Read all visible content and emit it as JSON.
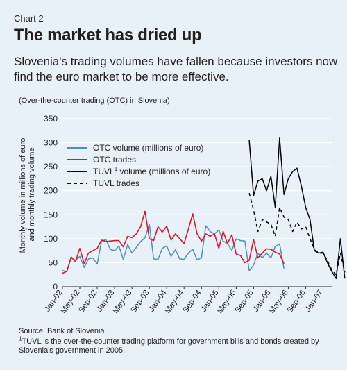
{
  "header": {
    "eyebrow": "Chart 2",
    "title": "The market has dried up",
    "subtitle": "Slovenia's trading volumes have fallen because investors now find the euro market to be more effective.",
    "context": "(Over-the-counter trading (OTC) in Slovenia)"
  },
  "footer": {
    "source": "Source: Bank of Slovenia.",
    "footnote_mark": "1",
    "footnote": "TUVL is the over-the-counter trading platform for government bills and bonds created by Slovenia's government in 2005."
  },
  "colors": {
    "background": "#e8f0f8",
    "otc_volume": "#4f8fb0",
    "otc_trades": "#d7182a",
    "tuvl": "#000000",
    "gridline": "#ffffff"
  },
  "chart_data": {
    "type": "line",
    "ylabel": "Monthly volume in millions of euro and monthly trading volume",
    "ylim": [
      0,
      350
    ],
    "yticks": [
      0,
      50,
      100,
      150,
      200,
      250,
      300,
      350
    ],
    "x_start": "2002-01",
    "x_end": "2007-03",
    "xtick_labels": [
      "Jan-02",
      "May-02",
      "Sep-02",
      "Jan-03",
      "May-03",
      "Sep-03",
      "Jan-04",
      "May-04",
      "Sep-04",
      "Jan-05",
      "May-05",
      "Sep-05",
      "Jan-06",
      "May-06",
      "Sep-06",
      "Jan-07"
    ],
    "grid": "horizontal",
    "legend_position": "upper-left",
    "series": [
      {
        "name": "OTC volume (millions of euro)",
        "key": "otc_volume",
        "style": "solid",
        "start": "2002-01",
        "values": [
          34,
          31,
          60,
          55,
          63,
          40,
          58,
          60,
          47,
          95,
          98,
          78,
          75,
          85,
          57,
          88,
          70,
          82,
          94,
          102,
          130,
          58,
          57,
          80,
          85,
          63,
          77,
          58,
          57,
          70,
          78,
          56,
          60,
          127,
          115,
          110,
          118,
          95,
          90,
          76,
          100,
          96,
          95,
          33,
          45,
          70,
          60,
          70,
          60,
          84,
          89,
          38
        ]
      },
      {
        "name": "OTC trades",
        "key": "otc_trades",
        "style": "solid",
        "start": "2002-01",
        "values": [
          28,
          32,
          62,
          52,
          80,
          48,
          70,
          75,
          80,
          97,
          94,
          95,
          96,
          96,
          83,
          105,
          102,
          110,
          125,
          157,
          100,
          96,
          125,
          114,
          126,
          97,
          110,
          100,
          90,
          120,
          152,
          110,
          95,
          110,
          105,
          110,
          80,
          115,
          90,
          108,
          68,
          65,
          50,
          55,
          98,
          60,
          70,
          79,
          78,
          72,
          68,
          48
        ]
      },
      {
        "name": "TUVL volume (millions of euro)",
        "sup": "1",
        "key": "tuvl_volume",
        "style": "solid",
        "start": "2005-08",
        "values": [
          305,
          190,
          220,
          225,
          200,
          230,
          165,
          310,
          192,
          225,
          240,
          247,
          210,
          165,
          140,
          75,
          70,
          72,
          50,
          32,
          17,
          100,
          17
        ]
      },
      {
        "name": "TUVL trades",
        "key": "tuvl_trades",
        "style": "dashed",
        "start": "2005-08",
        "values": [
          195,
          160,
          115,
          140,
          135,
          130,
          105,
          165,
          145,
          140,
          115,
          135,
          120,
          125,
          100,
          78,
          70,
          70,
          55,
          35,
          25,
          70,
          30
        ]
      }
    ]
  }
}
